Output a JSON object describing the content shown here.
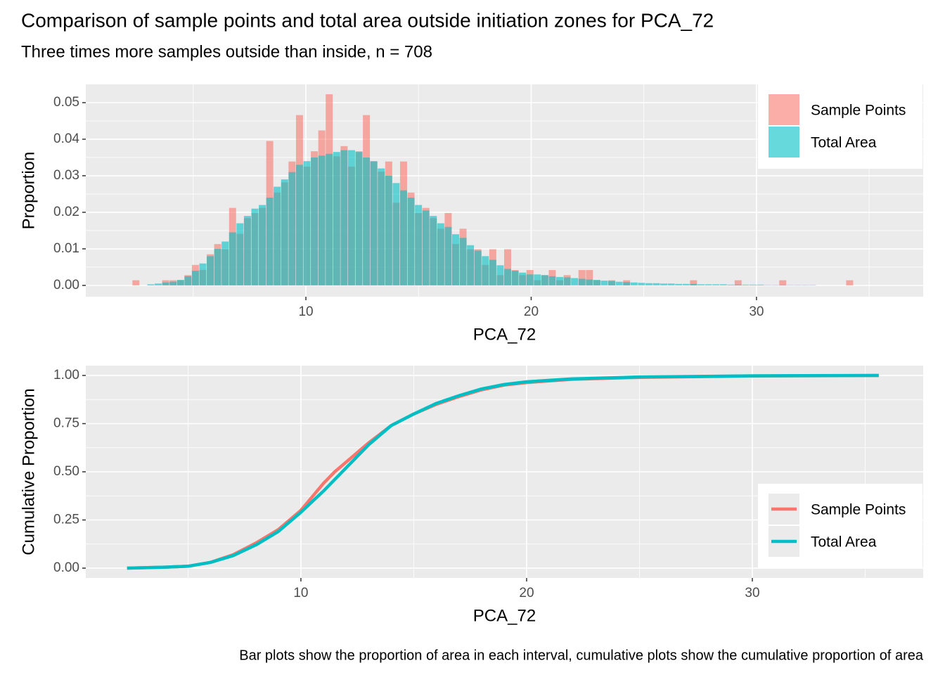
{
  "chart_data": [
    {
      "type": "histogram",
      "title": "Comparison of sample points and total area outside initiation zones for PCA_72",
      "subtitle": "Three times more samples outside than inside, n = 708",
      "x_label": "PCA_72",
      "y_label": "Proportion",
      "bins": [
        2.3,
        2.63,
        2.96,
        3.29,
        3.62,
        3.95,
        4.28,
        4.61,
        4.94,
        5.27,
        5.6,
        5.93,
        6.26,
        6.59,
        6.92,
        7.25,
        7.58,
        7.91,
        8.24,
        8.57,
        8.9,
        9.23,
        9.56,
        9.89,
        10.22,
        10.55,
        10.88,
        11.21,
        11.54,
        11.87,
        12.2,
        12.53,
        12.86,
        13.19,
        13.52,
        13.85,
        14.18,
        14.51,
        14.84,
        15.17,
        15.5,
        15.83,
        16.16,
        16.49,
        16.82,
        17.15,
        17.48,
        17.81,
        18.14,
        18.47,
        18.8,
        19.13,
        19.46,
        19.79,
        20.12,
        20.45,
        20.78,
        21.11,
        21.44,
        21.77,
        22.1,
        22.43,
        22.76,
        23.09,
        23.42,
        23.75,
        24.08,
        24.41,
        24.74,
        25.07,
        25.4,
        25.73,
        26.06,
        26.39,
        26.72,
        27.05,
        27.38,
        27.71,
        28.04,
        28.37,
        28.7,
        29.03,
        29.36,
        29.69,
        30.02,
        30.35,
        30.68,
        31.01,
        31.34,
        31.67,
        32.0,
        32.33,
        32.66,
        32.99,
        33.32,
        33.65,
        33.98,
        34.31,
        34.64
      ],
      "series": [
        {
          "name": "Sample Points",
          "color": "#F8766D",
          "values": [
            0.0014,
            0,
            0,
            0,
            0.0014,
            0.0014,
            0.0014,
            0.0028,
            0.0056,
            0.0042,
            0.0085,
            0.0113,
            0.0099,
            0.0212,
            0.0141,
            0.0184,
            0.0198,
            0.0212,
            0.0395,
            0.0254,
            0.0282,
            0.0339,
            0.0466,
            0.0325,
            0.0367,
            0.0424,
            0.0523,
            0.0353,
            0.0381,
            0.0325,
            0.0367,
            0.0466,
            0.0339,
            0.0311,
            0.0339,
            0.0226,
            0.0339,
            0.0254,
            0.0198,
            0.0212,
            0.0184,
            0.0155,
            0.0198,
            0.0113,
            0.0155,
            0.0099,
            0.0099,
            0.0056,
            0.0099,
            0.0028,
            0.0099,
            0.0042,
            0.0028,
            0.0042,
            0.0014,
            0.0028,
            0.0042,
            0.0014,
            0.0028,
            0,
            0.0042,
            0.0042,
            0.0014,
            0,
            0.0014,
            0,
            0.0014,
            0,
            0,
            0,
            0,
            0,
            0,
            0,
            0,
            0.0014,
            0,
            0,
            0,
            0,
            0,
            0.0014,
            0,
            0,
            0,
            0,
            0,
            0.0014,
            0,
            0,
            0,
            0,
            0,
            0,
            0,
            0,
            0.0014,
            0
          ]
        },
        {
          "name": "Total Area",
          "color": "#00BFC4",
          "values": [
            0,
            0,
            0.0003,
            0.0005,
            0.0008,
            0.001,
            0.0015,
            0.0025,
            0.004,
            0.006,
            0.008,
            0.01,
            0.012,
            0.0145,
            0.017,
            0.019,
            0.021,
            0.022,
            0.024,
            0.027,
            0.029,
            0.031,
            0.033,
            0.034,
            0.035,
            0.0355,
            0.036,
            0.0365,
            0.037,
            0.037,
            0.0365,
            0.035,
            0.034,
            0.032,
            0.03,
            0.028,
            0.026,
            0.024,
            0.022,
            0.0205,
            0.019,
            0.017,
            0.016,
            0.014,
            0.013,
            0.011,
            0.0095,
            0.008,
            0.007,
            0.0055,
            0.0045,
            0.004,
            0.0035,
            0.003,
            0.003,
            0.0028,
            0.0025,
            0.0023,
            0.0022,
            0.002,
            0.0018,
            0.0016,
            0.0015,
            0.0013,
            0.0012,
            0.001,
            0.0009,
            0.0008,
            0.0007,
            0.0006,
            0.0006,
            0.0005,
            0.0005,
            0.0004,
            0.0004,
            0.0004,
            0.0003,
            0.0003,
            0.0003,
            0.0003,
            0.0002,
            0.0002,
            0.0002,
            0.0002,
            0.0002,
            0.0001,
            0.0001,
            0.0001,
            0.0001,
            0.0001,
            0.0001,
            0.0001,
            0,
            0,
            0,
            0,
            0,
            0
          ]
        }
      ],
      "opacity": 0.6,
      "xlim": [
        0.23,
        37.4
      ],
      "ylim": [
        -0.0031,
        0.055
      ],
      "xticks": [
        10,
        20,
        30
      ],
      "minor_xticks": [
        5,
        15,
        25,
        35
      ],
      "yticks": [
        {
          "value": 0,
          "label": "0.00"
        },
        {
          "value": 0.01,
          "label": "0.01"
        },
        {
          "value": 0.02,
          "label": "0.02"
        },
        {
          "value": 0.03,
          "label": "0.03"
        },
        {
          "value": 0.04,
          "label": "0.04"
        },
        {
          "value": 0.05,
          "label": "0.05"
        }
      ],
      "minor_yticks": [
        0.005,
        0.015,
        0.025,
        0.035,
        0.045
      ],
      "grid": true,
      "legend": "top-right"
    },
    {
      "type": "line",
      "x_label": "PCA_72",
      "y_label": "Cumulative Proportion",
      "x": [
        2.3,
        4,
        5,
        6,
        7,
        8,
        9,
        10,
        11,
        11.5,
        12,
        12.5,
        13,
        14,
        15,
        16,
        17,
        18,
        19,
        20,
        22,
        25,
        30,
        35.6
      ],
      "series": [
        {
          "name": "Sample Points",
          "color": "#F8766D",
          "values": [
            0,
            0.005,
            0.01,
            0.03,
            0.07,
            0.13,
            0.2,
            0.3,
            0.44,
            0.5,
            0.55,
            0.6,
            0.65,
            0.74,
            0.8,
            0.85,
            0.89,
            0.925,
            0.95,
            0.963,
            0.98,
            0.99,
            0.997,
            1
          ]
        },
        {
          "name": "Total Area",
          "color": "#00BFC4",
          "values": [
            0,
            0.005,
            0.01,
            0.03,
            0.065,
            0.12,
            0.19,
            0.29,
            0.4,
            0.46,
            0.52,
            0.58,
            0.64,
            0.74,
            0.8,
            0.855,
            0.895,
            0.93,
            0.953,
            0.967,
            0.982,
            0.992,
            0.998,
            1
          ]
        }
      ],
      "xlim": [
        0.47,
        37.57
      ],
      "ylim": [
        -0.051,
        1.051
      ],
      "xticks": [
        10,
        20,
        30
      ],
      "minor_xticks": [
        5,
        15,
        25,
        35
      ],
      "yticks": [
        {
          "value": 0,
          "label": "0.00"
        },
        {
          "value": 0.25,
          "label": "0.25"
        },
        {
          "value": 0.5,
          "label": "0.50"
        },
        {
          "value": 0.75,
          "label": "0.75"
        },
        {
          "value": 1,
          "label": "1.00"
        }
      ],
      "minor_yticks": [
        0.125,
        0.375,
        0.625,
        0.875
      ],
      "grid": true,
      "legend": "bottom-right",
      "caption": "Bar plots show the proportion of area in each interval, cumulative plots show the cumulative proportion of area"
    }
  ]
}
